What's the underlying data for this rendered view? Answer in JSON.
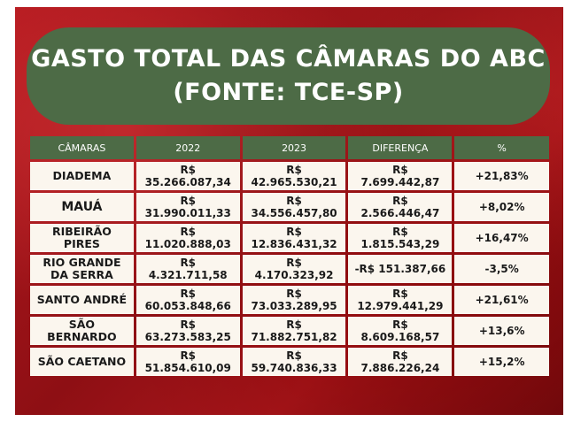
{
  "title": {
    "line1": "GASTO TOTAL DAS CÂMARAS DO ABC",
    "line2": "(FONTE: TCE-SP)"
  },
  "table": {
    "headers": [
      "CÂMARAS",
      "2022",
      "2023",
      "DIFERENÇA",
      "%"
    ],
    "rows": [
      [
        "DIADEMA",
        "R$ 35.266.087,34",
        "R$ 42.965.530,21",
        "R$ 7.699.442,87",
        "+21,83%"
      ],
      [
        "MAUÁ",
        "R$ 31.990.011,33",
        "R$ 34.556.457,80",
        "R$ 2.566.446,47",
        "+8,02%"
      ],
      [
        "RIBEIRÃO PIRES",
        "R$ 11.020.888,03",
        "R$ 12.836.431,32",
        "R$ 1.815.543,29",
        "+16,47%"
      ],
      [
        "RIO GRANDE DA SERRA",
        "R$ 4.321.711,58",
        "R$ 4.170.323,92",
        "-R$ 151.387,66",
        "-3,5%"
      ],
      [
        "SANTO ANDRÉ",
        "R$ 60.053.848,66",
        "R$ 73.033.289,95",
        "R$ 12.979.441,29",
        "+21,61%"
      ],
      [
        "SÃO BERNARDO",
        "R$ 63.273.583,25",
        "R$ 71.882.751,82",
        "R$ 8.609.168,57",
        "+13,6%"
      ],
      [
        "SÃO CAETANO",
        "R$ 51.854.610,09",
        "R$ 59.740.836,33",
        "R$ 7.886.226,24",
        "+15,2%"
      ]
    ]
  },
  "colors": {
    "background_red": "#a8161b",
    "title_green": "#4d6b46",
    "cell_cream": "#fbf6ee"
  }
}
